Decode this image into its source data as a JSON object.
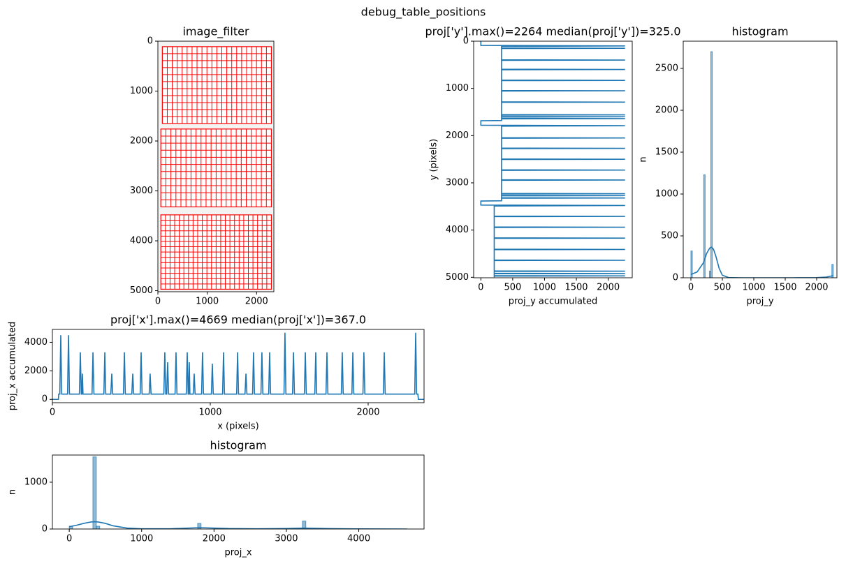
{
  "suptitle": "debug_table_positions",
  "chart_data": [
    {
      "type": "image",
      "title": "image_filter",
      "xlim": [
        0,
        2350
      ],
      "ylim": [
        5020,
        0
      ],
      "xticks": [
        0,
        1000,
        2000
      ],
      "yticks": [
        0,
        1000,
        2000,
        3000,
        4000,
        5000
      ]
    },
    {
      "type": "line",
      "title": "proj['y'].max()=2264 median(proj['y'])=325.0",
      "xlabel": "proj_y accumulated",
      "ylabel": "y (pixels)",
      "color": "#1f77b4",
      "xlim": [
        -113.2,
        2377.2
      ],
      "ylim": [
        5010,
        0
      ],
      "xticks": [
        0,
        500,
        1000,
        1500,
        2000
      ],
      "yticks": [
        0,
        1000,
        2000,
        3000,
        4000,
        5000
      ],
      "x": [
        0,
        0,
        2264,
        325,
        325,
        2264,
        325,
        325,
        2264,
        325,
        325,
        2264,
        325,
        325,
        2264,
        325,
        325,
        2264,
        325,
        325,
        2264,
        325,
        325,
        2264,
        325,
        325,
        2264,
        325,
        325,
        2264,
        325,
        325,
        0,
        0,
        2264,
        325,
        325,
        2264,
        325,
        325,
        2264,
        325,
        325,
        2264,
        325,
        325,
        2264,
        325,
        325,
        2264,
        325,
        325,
        2264,
        325,
        325,
        2264,
        325,
        325,
        2264,
        325,
        325,
        0,
        0,
        2264,
        210,
        210,
        2264,
        210,
        210,
        2264,
        210,
        210,
        2264,
        210,
        210,
        2264,
        210,
        210,
        2264,
        210,
        210,
        2264,
        210,
        210,
        2264,
        210,
        210,
        2264,
        210,
        210
      ],
      "values": [
        0,
        90,
        100,
        110,
        145,
        150,
        155,
        395,
        400,
        405,
        595,
        600,
        605,
        825,
        830,
        835,
        1045,
        1050,
        1055,
        1285,
        1290,
        1295,
        1555,
        1560,
        1565,
        1595,
        1600,
        1605,
        1635,
        1640,
        1645,
        1680,
        1685,
        1780,
        1790,
        1800,
        2045,
        2050,
        2055,
        2265,
        2270,
        2275,
        2495,
        2500,
        2505,
        2725,
        2730,
        2735,
        2935,
        2940,
        2945,
        3225,
        3230,
        3235,
        3265,
        3270,
        3275,
        3315,
        3320,
        3325,
        3380,
        3385,
        3470,
        3480,
        3490,
        3705,
        3710,
        3715,
        3935,
        3940,
        3945,
        4165,
        4170,
        4175,
        4405,
        4410,
        4415,
        4635,
        4640,
        4645,
        4865,
        4870,
        4875,
        4915,
        4920,
        4925,
        4965,
        4970,
        4975,
        4999
      ]
    },
    {
      "type": "histogram",
      "title": "histogram",
      "xlabel": "proj_y",
      "ylabel": "n",
      "color": "#1f77b4",
      "xlim": [
        -122,
        2322
      ],
      "ylim": [
        0,
        2825
      ],
      "xticks": [
        0,
        500,
        1000,
        1500,
        2000
      ],
      "yticks": [
        0,
        500,
        1000,
        1500,
        2000,
        2500
      ],
      "bins": [
        0,
        22.6,
        203.8,
        226.4,
        294.3,
        316.9,
        339.5,
        2241.4,
        2264
      ],
      "values": [
        320,
        0,
        1230,
        0,
        80,
        2700,
        0,
        160
      ],
      "kde": {
        "x": [
          0,
          100,
          200,
          250,
          300,
          330,
          360,
          400,
          450,
          500,
          600,
          800,
          1200,
          1600,
          2000,
          2150,
          2264
        ],
        "values": [
          40,
          70,
          180,
          290,
          355,
          365,
          340,
          250,
          110,
          30,
          3,
          0,
          0,
          0,
          2,
          8,
          25
        ]
      }
    },
    {
      "type": "line",
      "title": "proj['x'].max()=4669 median(proj['x'])=367.0",
      "xlabel": "x (pixels)",
      "ylabel": "proj_x accumulated",
      "color": "#1f77b4",
      "xlim": [
        0,
        2354
      ],
      "ylim": [
        -233,
        4902
      ],
      "xticks": [
        0,
        1000,
        2000
      ],
      "yticks": [
        0,
        2000,
        4000
      ],
      "x": [
        0,
        38,
        40,
        47,
        53,
        59,
        96,
        102,
        108,
        171,
        177,
        183,
        186,
        190,
        194,
        251,
        257,
        263,
        326,
        332,
        338,
        370,
        376,
        382,
        450,
        456,
        462,
        503,
        509,
        515,
        556,
        562,
        568,
        613,
        619,
        625,
        706,
        712,
        718,
        724,
        730,
        736,
        777,
        783,
        789,
        848,
        854,
        860,
        863,
        867,
        871,
        892,
        898,
        904,
        945,
        951,
        957,
        1007,
        1013,
        1019,
        1078,
        1084,
        1090,
        1167,
        1173,
        1179,
        1220,
        1226,
        1232,
        1268,
        1274,
        1280,
        1321,
        1327,
        1333,
        1370,
        1376,
        1382,
        1467,
        1473,
        1479,
        1521,
        1527,
        1533,
        1596,
        1602,
        1608,
        1662,
        1668,
        1674,
        1733,
        1739,
        1745,
        1830,
        1836,
        1842,
        1897,
        1903,
        1909,
        1967,
        1973,
        1979,
        2096,
        2102,
        2108,
        2295,
        2301,
        2307,
        2315,
        2318,
        2354
      ],
      "values": [
        0,
        0,
        367,
        367,
        4500,
        367,
        367,
        4500,
        367,
        367,
        3300,
        367,
        367,
        1800,
        367,
        367,
        3300,
        367,
        367,
        3300,
        367,
        367,
        1800,
        367,
        367,
        3300,
        367,
        367,
        1800,
        367,
        367,
        3300,
        367,
        367,
        1800,
        367,
        367,
        3300,
        367,
        367,
        2600,
        367,
        367,
        3300,
        367,
        367,
        3300,
        367,
        367,
        2600,
        367,
        367,
        1800,
        367,
        367,
        3300,
        367,
        367,
        2500,
        367,
        367,
        3300,
        367,
        367,
        3300,
        367,
        367,
        1800,
        367,
        367,
        3300,
        367,
        367,
        3300,
        367,
        367,
        3300,
        367,
        367,
        4669,
        367,
        367,
        3300,
        367,
        367,
        3300,
        367,
        367,
        3300,
        367,
        367,
        3300,
        367,
        367,
        3300,
        367,
        367,
        3300,
        367,
        367,
        3300,
        367,
        367,
        3300,
        367,
        367,
        4669,
        367,
        367,
        0,
        0
      ]
    },
    {
      "type": "histogram",
      "title": "histogram",
      "xlabel": "proj_x",
      "ylabel": "n",
      "color": "#1f77b4",
      "xlim": [
        -233,
        4902
      ],
      "ylim": [
        0,
        1580
      ],
      "xticks": [
        0,
        1000,
        2000,
        3000,
        4000
      ],
      "yticks": [
        0,
        1000
      ],
      "bins": [
        0,
        46.69,
        326.83,
        373.52,
        420.21,
        1774.22,
        1820.91,
        3221.61,
        3268.3,
        4669
      ],
      "values": [
        60,
        0,
        1540,
        60,
        0,
        120,
        0,
        170,
        0
      ],
      "kde": {
        "x": [
          0,
          100,
          200,
          300,
          350,
          400,
          500,
          600,
          800,
          1000,
          1400,
          1800,
          2200,
          2600,
          3000,
          3240,
          3600,
          4000,
          4669
        ],
        "values": [
          50,
          80,
          120,
          150,
          155,
          150,
          120,
          70,
          20,
          5,
          5,
          30,
          10,
          5,
          10,
          20,
          8,
          3,
          0
        ]
      }
    }
  ]
}
